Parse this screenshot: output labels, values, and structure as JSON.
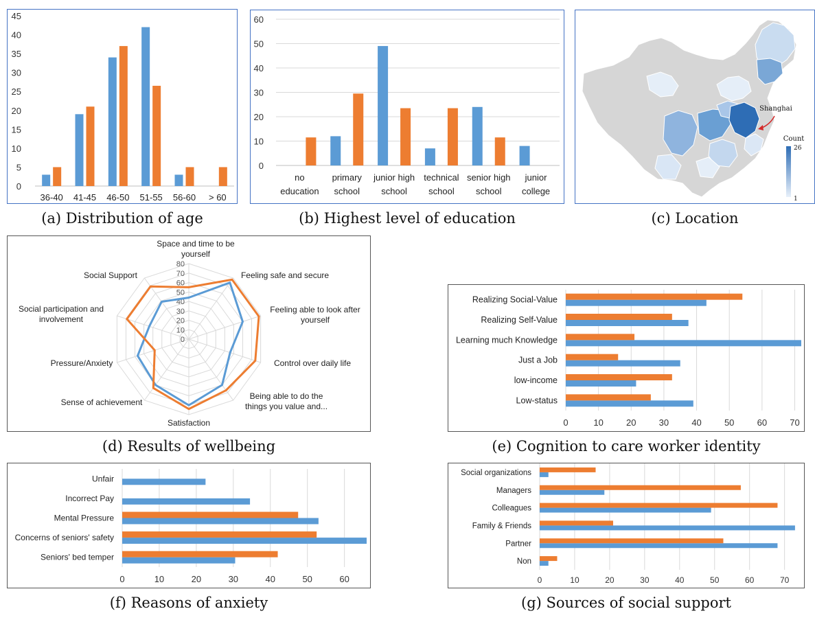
{
  "captions": {
    "a": "(a) Distribution of age",
    "b": "(b) Highest level of education",
    "c": "(c) Location",
    "d": "(d) Results of wellbeing",
    "e": "(e) Cognition to care worker identity",
    "f": "(f) Reasons of anxiety",
    "g": "(g) Sources of social support"
  },
  "colors": {
    "blue": "#5b9bd5",
    "orange": "#ed7d31",
    "frame": "#4472c4",
    "grid": "#d9d9d9"
  },
  "map_labels": {
    "city": "Shanghai",
    "legend_title": "Count",
    "legend_max": "26",
    "legend_min": "1"
  },
  "chart_data": [
    {
      "id": "a",
      "type": "bar",
      "categories": [
        "36-40",
        "41-45",
        "46-50",
        "51-55",
        "56-60",
        "> 60"
      ],
      "series": [
        {
          "values": [
            3,
            19,
            34,
            42,
            3,
            0
          ]
        },
        {
          "values": [
            5,
            21,
            37,
            26.5,
            5,
            5
          ]
        }
      ],
      "ylim": [
        0,
        45
      ],
      "yticks": [
        0,
        5,
        10,
        15,
        20,
        25,
        30,
        35,
        40,
        45
      ]
    },
    {
      "id": "b",
      "type": "bar",
      "categories": [
        [
          "no",
          "education"
        ],
        [
          "primary",
          "school"
        ],
        [
          "junior high",
          "school"
        ],
        [
          "technical",
          "school"
        ],
        [
          "senior high",
          "school"
        ],
        [
          "junior",
          "college"
        ]
      ],
      "series": [
        {
          "values": [
            0,
            12,
            49,
            7,
            24,
            8
          ]
        },
        {
          "values": [
            11.5,
            29.5,
            23.5,
            23.5,
            11.5,
            0
          ]
        }
      ],
      "ylim": [
        0,
        60
      ],
      "yticks": [
        0,
        10,
        20,
        30,
        40,
        50,
        60
      ]
    },
    {
      "id": "c",
      "type": "heatmap",
      "title": "",
      "legend_range": [
        1,
        26
      ]
    },
    {
      "id": "d",
      "type": "radar",
      "axes": [
        [
          "Space and time to be",
          "yourself"
        ],
        [
          "Feeling safe and secure"
        ],
        [
          "Feeling able to look after",
          "yourself"
        ],
        [
          "Control over daily life"
        ],
        [
          "Being able to do the",
          "things you value and..."
        ],
        [
          "Satisfaction"
        ],
        [
          "Sense of achievement"
        ],
        [
          "Pressure/Anxiety"
        ],
        [
          "Social participation and",
          "involvement"
        ],
        [
          "Social Support"
        ]
      ],
      "ticks": [
        0,
        10,
        20,
        30,
        40,
        50,
        60,
        70,
        80
      ],
      "series": [
        {
          "values": [
            44,
            74,
            60,
            46,
            60,
            70,
            60,
            57,
            44,
            49
          ]
        },
        {
          "values": [
            55,
            78,
            78,
            74,
            67,
            74,
            64,
            38,
            69,
            69
          ]
        }
      ]
    },
    {
      "id": "e",
      "type": "hbar",
      "categories": [
        "Realizing Social-Value",
        "Realizing Self-Value",
        "Learning much Knowledge",
        "Just a Job",
        "low-income",
        "Low-status"
      ],
      "series": [
        {
          "values": [
            43,
            37.5,
            72,
            35,
            21.5,
            39
          ]
        },
        {
          "values": [
            54,
            32.5,
            21,
            16,
            32.5,
            26
          ]
        }
      ],
      "xlim": [
        0,
        72
      ],
      "xticks": [
        0,
        10,
        20,
        30,
        40,
        50,
        60,
        70
      ]
    },
    {
      "id": "f",
      "type": "hbar",
      "categories": [
        "Unfair",
        "Incorrect Pay",
        "Mental Pressure",
        "Concerns of seniors' safety",
        "Seniors' bed temper"
      ],
      "series": [
        {
          "values": [
            22.5,
            34.5,
            53,
            66,
            30.5
          ]
        },
        {
          "values": [
            0,
            0,
            47.5,
            52.5,
            42
          ]
        }
      ],
      "xlim": [
        0,
        66
      ],
      "xticks": [
        0,
        10,
        20,
        30,
        40,
        50,
        60
      ]
    },
    {
      "id": "g",
      "type": "hbar",
      "categories": [
        "Social organizations",
        "Managers",
        "Colleagues",
        "Family & Friends",
        "Partner",
        "Non"
      ],
      "series": [
        {
          "values": [
            2.5,
            18.5,
            49,
            73,
            68,
            2.5
          ]
        },
        {
          "values": [
            16,
            57.5,
            68,
            21,
            52.5,
            5
          ]
        }
      ],
      "xlim": [
        0,
        74
      ],
      "xticks": [
        0,
        10,
        20,
        30,
        40,
        50,
        60,
        70
      ]
    }
  ]
}
